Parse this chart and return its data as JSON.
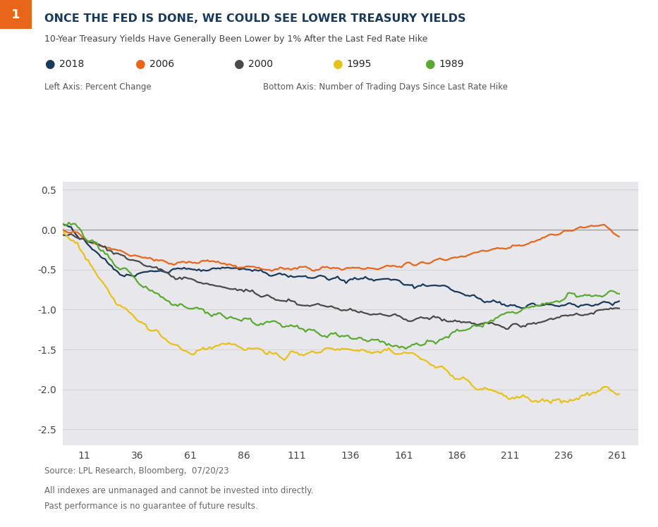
{
  "title": "ONCE THE FED IS DONE, WE COULD SEE LOWER TREASURY YIELDS",
  "subtitle": "10-Year Treasury Yields Have Generally Been Lower by 1% After the Last Fed Rate Hike",
  "legend_labels": [
    "2018",
    "2006",
    "2000",
    "1995",
    "1989"
  ],
  "legend_colors": [
    "#1a3a5c",
    "#e8651a",
    "#4a4a4a",
    "#e8c01a",
    "#5aaa32"
  ],
  "axis_label_left": "Left Axis: Percent Change",
  "axis_label_bottom": "Bottom Axis: Number of Trading Days Since Last Rate Hike",
  "source_text": "Source: LPL Research, Bloomberg,  07/20/23",
  "disclaimer1": "All indexes are unmanaged and cannot be invested into directly.",
  "disclaimer2": "Past performance is no guarantee of future results.",
  "xlim": [
    1,
    271
  ],
  "ylim": [
    -2.7,
    0.6
  ],
  "yticks": [
    0.5,
    0.0,
    -0.5,
    -1.0,
    -1.5,
    -2.0,
    -2.5
  ],
  "xticks": [
    11,
    36,
    61,
    86,
    111,
    136,
    161,
    186,
    211,
    236,
    261
  ],
  "background_color": "#e8e8ec",
  "number_label": "1",
  "number_bg": "#e8651a",
  "title_color": "#1a3a5c",
  "subtitle_color": "#333333",
  "zero_line_color": "#999999"
}
